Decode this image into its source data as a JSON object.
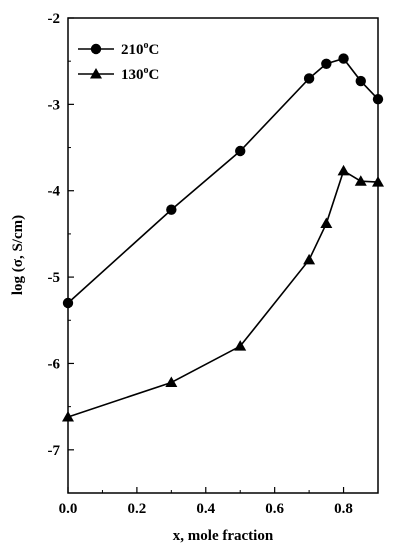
{
  "chart_data": {
    "type": "line",
    "xlabel": "x, mole fraction",
    "ylabel": "log (σ, S/cm)",
    "xlim": [
      0.0,
      0.9
    ],
    "ylim": [
      -7.5,
      -2.0
    ],
    "x_ticks": [
      0.0,
      0.2,
      0.4,
      0.6,
      0.8
    ],
    "x_tick_labels": [
      "0.0",
      "0.2",
      "0.4",
      "0.6",
      "0.8"
    ],
    "y_ticks": [
      -2,
      -3,
      -4,
      -5,
      -6,
      -7
    ],
    "y_tick_labels": [
      "-2",
      "-3",
      "-4",
      "-5",
      "-6",
      "-7"
    ],
    "grid": false,
    "legend_position": "top-left",
    "series": [
      {
        "name": "210°C",
        "name_base": "210",
        "name_sup": "o",
        "name_unit": "C",
        "marker": "circle",
        "color": "#000000",
        "x": [
          0.0,
          0.3,
          0.5,
          0.7,
          0.75,
          0.8,
          0.85,
          0.9
        ],
        "y": [
          -5.3,
          -4.22,
          -3.54,
          -2.7,
          -2.53,
          -2.47,
          -2.73,
          -2.94
        ]
      },
      {
        "name": "130°C",
        "name_base": "130",
        "name_sup": "o",
        "name_unit": "C",
        "marker": "triangle",
        "color": "#000000",
        "x": [
          0.0,
          0.3,
          0.5,
          0.7,
          0.75,
          0.8,
          0.85,
          0.9
        ],
        "y": [
          -6.62,
          -6.22,
          -5.8,
          -4.8,
          -4.38,
          -3.77,
          -3.89,
          -3.9
        ]
      }
    ]
  }
}
